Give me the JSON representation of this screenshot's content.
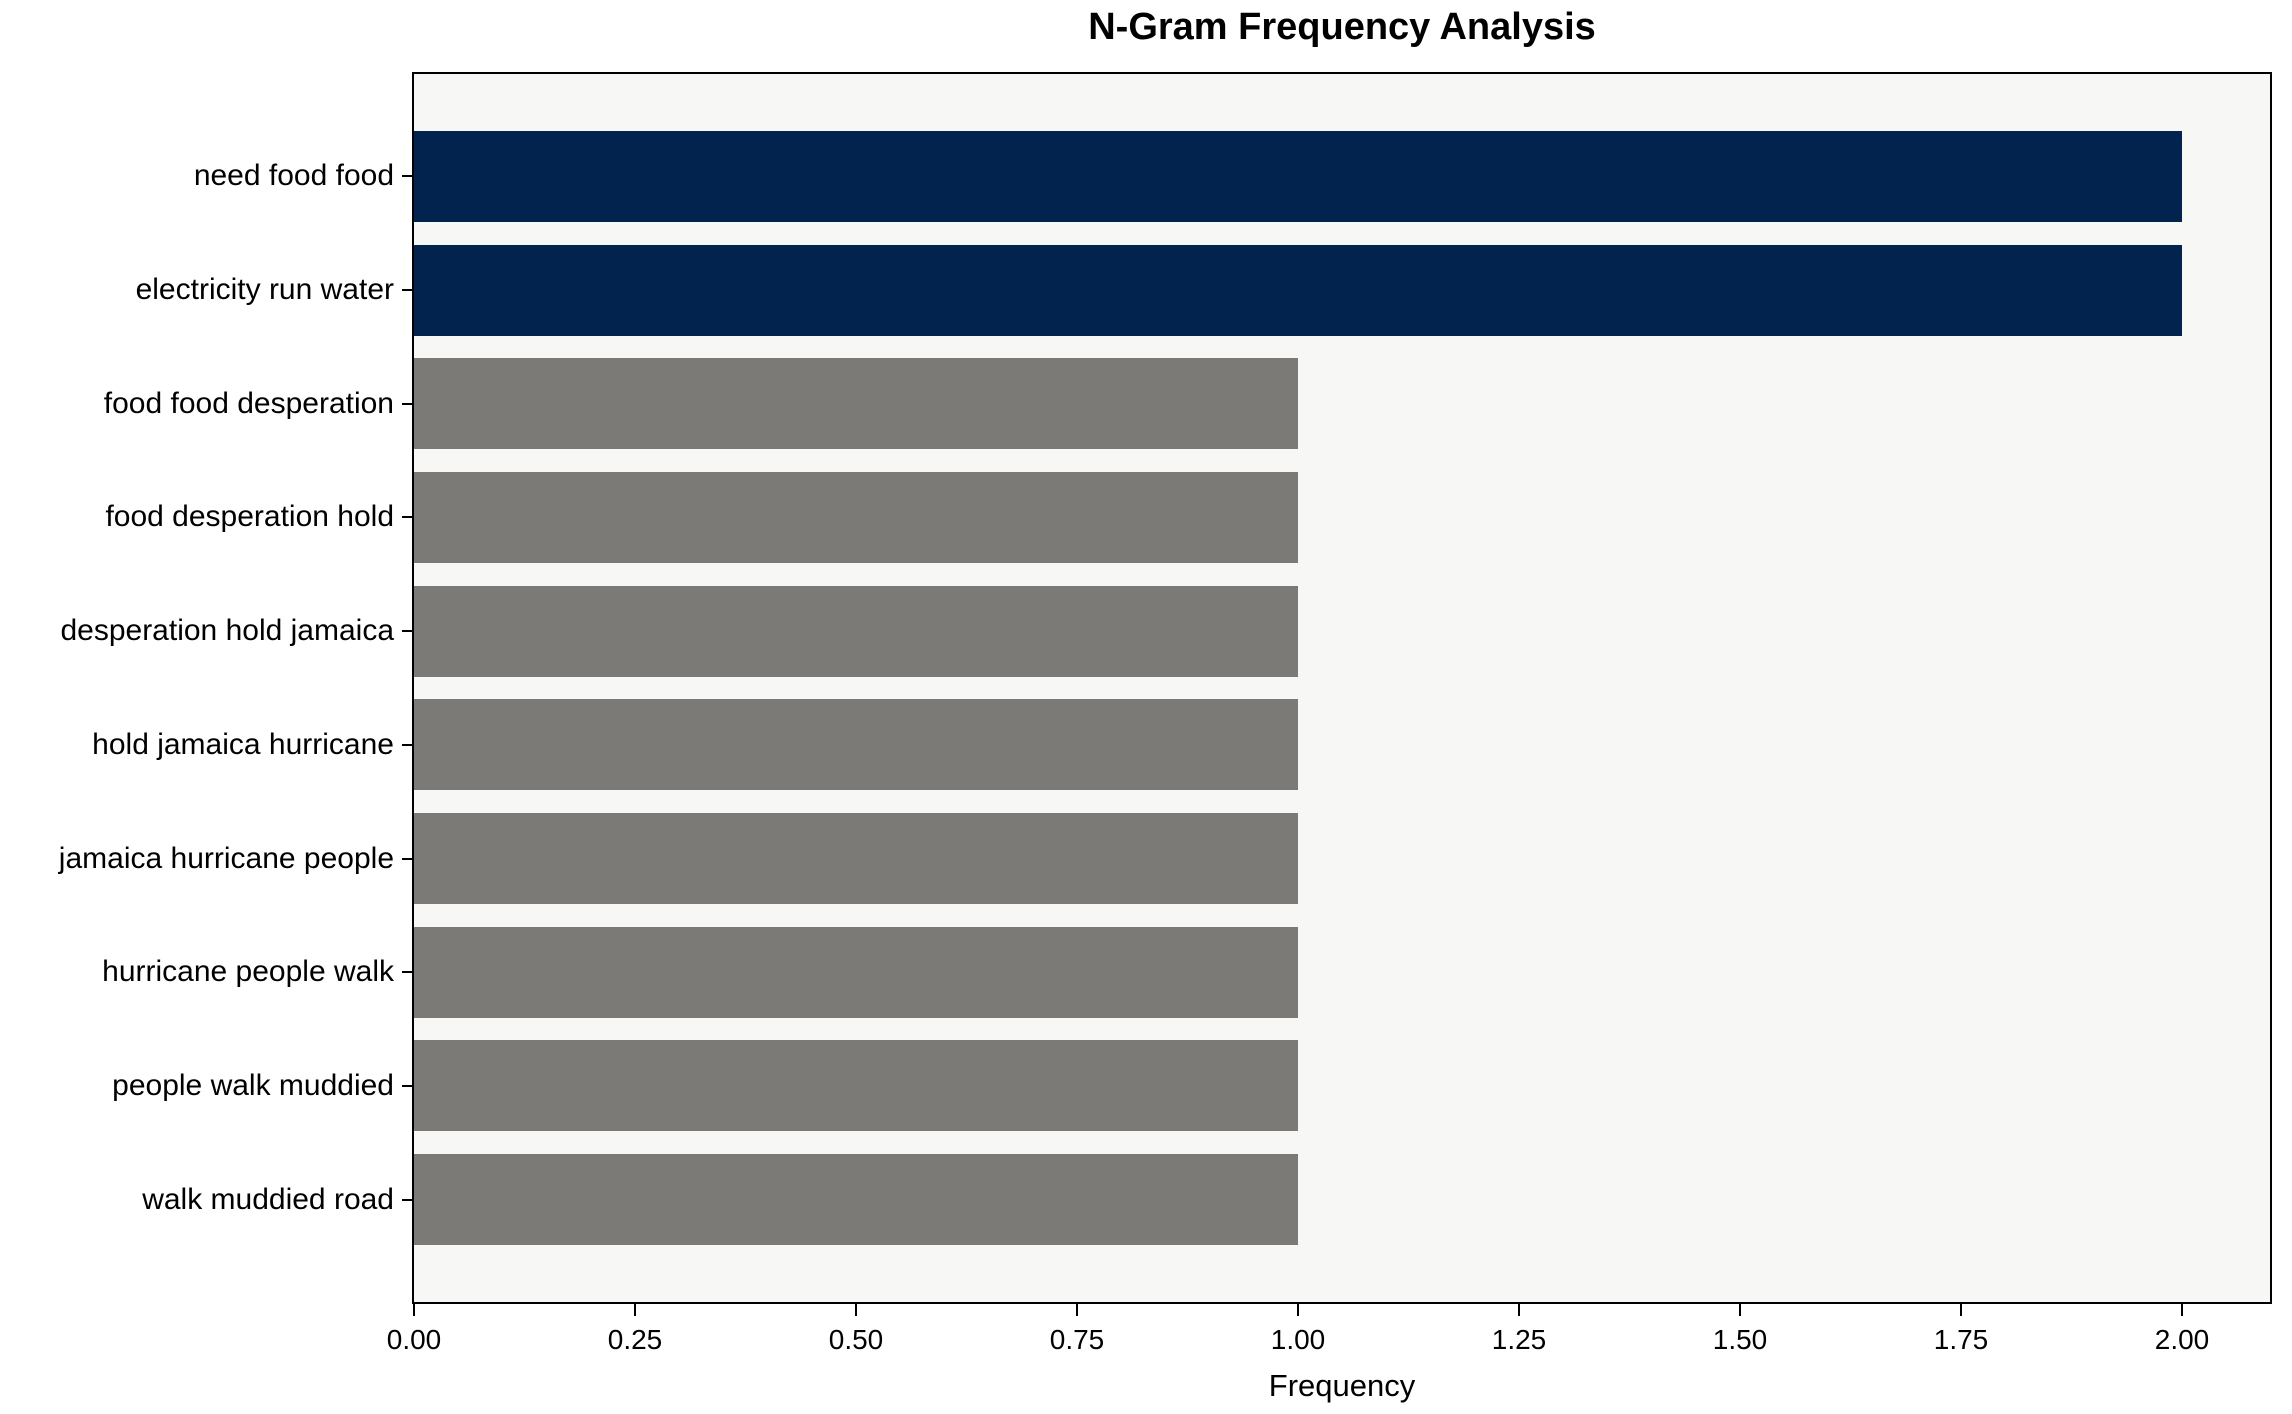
{
  "chart_data": {
    "type": "bar",
    "orientation": "horizontal",
    "title": "N-Gram Frequency Analysis",
    "xlabel": "Frequency",
    "ylabel": "",
    "categories": [
      "need food food",
      "electricity run water",
      "food food desperation",
      "food desperation hold",
      "desperation hold jamaica",
      "hold jamaica hurricane",
      "jamaica hurricane people",
      "hurricane people walk",
      "people walk muddied",
      "walk muddied road"
    ],
    "values": [
      2,
      2,
      1,
      1,
      1,
      1,
      1,
      1,
      1,
      1
    ],
    "bar_colors": [
      "#02234d",
      "#02234d",
      "#7b7a77",
      "#7b7a77",
      "#7b7a77",
      "#7b7a77",
      "#7b7a77",
      "#7b7a77",
      "#7b7a77",
      "#7b7a77"
    ],
    "highlight_color": "#02234d",
    "default_color": "#7b7a77",
    "xlim": [
      0,
      2.1
    ],
    "xtick_values": [
      0,
      0.25,
      0.5,
      0.75,
      1.0,
      1.25,
      1.5,
      1.75,
      2.0
    ],
    "xtick_labels": [
      "0.00",
      "0.25",
      "0.50",
      "0.75",
      "1.00",
      "1.25",
      "1.50",
      "1.75",
      "2.00"
    ],
    "grid": false,
    "legend": false,
    "plot_background": "#f7f7f6",
    "figure_background": "#ffffff",
    "spine_color": "#000000"
  }
}
